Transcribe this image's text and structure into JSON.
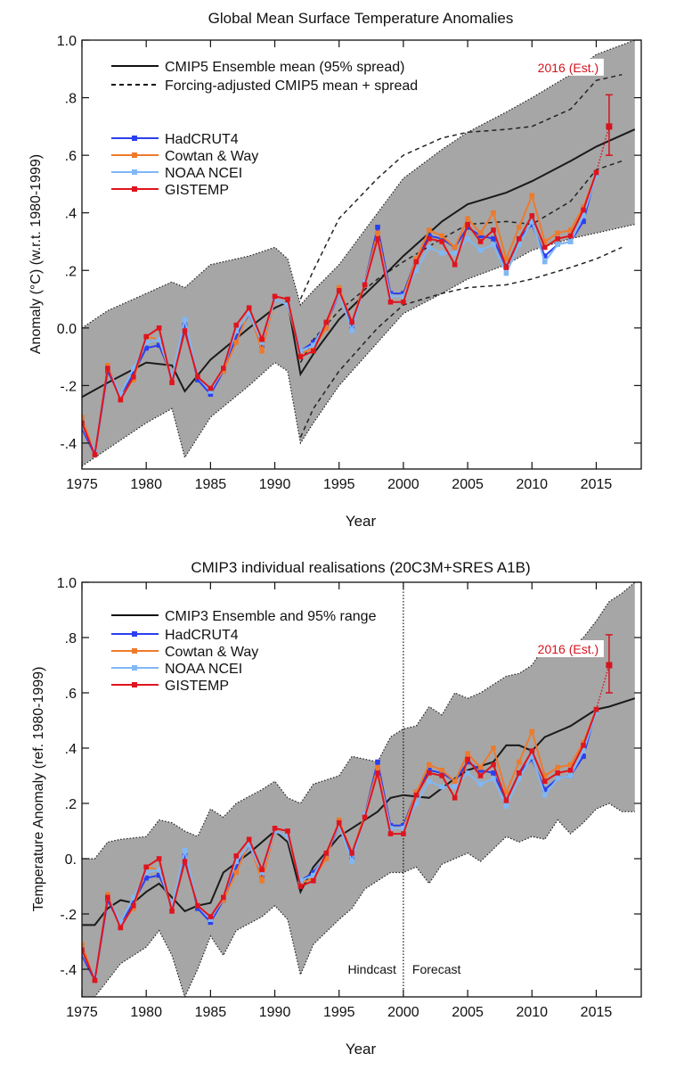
{
  "chart_data": [
    {
      "type": "line",
      "title": "Global Mean Surface Temperature Anomalies",
      "xlabel": "Year",
      "ylabel": "Anomaly (°C) (w.r.t. 1980-1999)",
      "xlim": [
        1975,
        2018.5
      ],
      "ylim": [
        -0.49,
        1.0
      ],
      "x_ticks": [
        1975,
        1980,
        1985,
        1990,
        1995,
        2000,
        2005,
        2010,
        2015
      ],
      "y_ticks": [
        {
          "v": 1.0,
          "label": "1.0"
        },
        {
          "v": 0.8,
          "label": ".8"
        },
        {
          "v": 0.6,
          "label": ".6"
        },
        {
          "v": 0.4,
          "label": ".4"
        },
        {
          "v": 0.2,
          "label": ".2"
        },
        {
          "v": 0.0,
          "label": "0.0"
        },
        {
          "v": -0.2,
          "label": "-.2"
        },
        {
          "v": -0.4,
          "label": "-.4"
        }
      ],
      "grid": false,
      "legend": {
        "placement": "top-left",
        "model_entries": [
          "CMIP5 Ensemble mean (95% spread)",
          "Forcing-adjusted CMIP5 mean + spread"
        ],
        "obs_entries": [
          "HadCRUT4",
          "Cowtan & Way",
          "NOAA NCEI",
          "GISTEMP"
        ]
      },
      "band_color": "#a6a6a6",
      "model_mean": {
        "x": [
          1975,
          1977,
          1980,
          1982,
          1983,
          1985,
          1988,
          1990,
          1991,
          1992,
          1993,
          1995,
          1998,
          2000,
          2003,
          2005,
          2008,
          2010,
          2013,
          2015,
          2018
        ],
        "y": [
          -0.24,
          -0.19,
          -0.12,
          -0.13,
          -0.22,
          -0.11,
          0.0,
          0.07,
          0.09,
          -0.16,
          -0.09,
          0.03,
          0.16,
          0.25,
          0.37,
          0.43,
          0.47,
          0.51,
          0.58,
          0.63,
          0.69
        ]
      },
      "model_spread": {
        "x": [
          1975,
          1977,
          1980,
          1982,
          1983,
          1985,
          1988,
          1990,
          1991,
          1992,
          1993,
          1995,
          1998,
          2000,
          2003,
          2005,
          2008,
          2010,
          2013,
          2015,
          2018
        ],
        "upper": [
          0.0,
          0.06,
          0.12,
          0.16,
          0.14,
          0.22,
          0.25,
          0.28,
          0.24,
          0.08,
          0.13,
          0.22,
          0.4,
          0.52,
          0.62,
          0.68,
          0.75,
          0.8,
          0.88,
          0.95,
          1.0
        ],
        "lower": [
          -0.48,
          -0.42,
          -0.33,
          -0.28,
          -0.45,
          -0.31,
          -0.2,
          -0.12,
          -0.15,
          -0.4,
          -0.33,
          -0.2,
          -0.05,
          0.05,
          0.12,
          0.17,
          0.22,
          0.27,
          0.31,
          0.33,
          0.36
        ]
      },
      "adjusted": {
        "x": [
          1992,
          1993,
          1995,
          1998,
          2000,
          2003,
          2005,
          2008,
          2010,
          2013,
          2015,
          2017
        ],
        "upper": [
          0.1,
          0.2,
          0.38,
          0.52,
          0.6,
          0.66,
          0.68,
          0.69,
          0.7,
          0.76,
          0.86,
          0.88
        ],
        "mean": [
          -0.12,
          -0.04,
          0.06,
          0.17,
          0.23,
          0.31,
          0.36,
          0.37,
          0.36,
          0.44,
          0.55,
          0.58
        ],
        "lower": [
          -0.38,
          -0.28,
          -0.15,
          0.0,
          0.08,
          0.12,
          0.14,
          0.15,
          0.17,
          0.21,
          0.24,
          0.28
        ]
      },
      "x": [
        1975,
        1976,
        1977,
        1978,
        1979,
        1980,
        1981,
        1982,
        1983,
        1984,
        1985,
        1986,
        1987,
        1988,
        1989,
        1990,
        1991,
        1992,
        1993,
        1994,
        1995,
        1996,
        1997,
        1998,
        1999,
        2000,
        2001,
        2002,
        2003,
        2004,
        2005,
        2006,
        2007,
        2008,
        2009,
        2010,
        2011,
        2012,
        2013,
        2014,
        2015
      ],
      "series": [
        {
          "name": "HadCRUT4",
          "color": "#2b3ff0",
          "values": [
            -0.35,
            -0.44,
            -0.15,
            -0.24,
            -0.16,
            -0.07,
            -0.06,
            -0.17,
            0.01,
            -0.18,
            -0.23,
            -0.15,
            -0.03,
            0.05,
            -0.06,
            0.1,
            0.08,
            -0.08,
            -0.05,
            0.01,
            0.12,
            0.0,
            0.16,
            0.35,
            0.12,
            0.12,
            0.24,
            0.32,
            0.31,
            0.28,
            0.35,
            0.32,
            0.31,
            0.21,
            0.31,
            0.36,
            0.25,
            0.29,
            0.3,
            0.37,
            0.54
          ]
        },
        {
          "name": "Cowtan & Way",
          "color": "#ee7a2b",
          "values": [
            -0.31,
            -0.44,
            -0.13,
            -0.24,
            -0.18,
            -0.03,
            -0.04,
            -0.18,
            -0.01,
            -0.17,
            -0.21,
            -0.15,
            -0.05,
            0.06,
            -0.08,
            0.1,
            0.08,
            -0.09,
            -0.07,
            0.0,
            0.14,
            0.02,
            0.16,
            0.33,
            0.11,
            0.11,
            0.24,
            0.34,
            0.32,
            0.28,
            0.38,
            0.33,
            0.4,
            0.24,
            0.35,
            0.46,
            0.3,
            0.33,
            0.34,
            0.42,
            0.54
          ]
        },
        {
          "name": "NOAA NCEI",
          "color": "#7fb8f5",
          "values": [
            -0.34,
            -0.43,
            -0.14,
            -0.23,
            -0.14,
            -0.05,
            -0.04,
            -0.17,
            0.03,
            -0.17,
            -0.22,
            -0.14,
            -0.01,
            0.05,
            -0.05,
            0.1,
            0.08,
            -0.08,
            -0.06,
            0.02,
            0.12,
            -0.01,
            0.16,
            0.31,
            0.11,
            0.11,
            0.2,
            0.28,
            0.26,
            0.26,
            0.31,
            0.27,
            0.29,
            0.19,
            0.29,
            0.37,
            0.23,
            0.29,
            0.3,
            0.39,
            0.53
          ]
        },
        {
          "name": "GISTEMP",
          "color": "#e0141e",
          "values": [
            -0.33,
            -0.44,
            -0.14,
            -0.25,
            -0.17,
            -0.03,
            0.0,
            -0.19,
            -0.01,
            -0.17,
            -0.21,
            -0.14,
            0.01,
            0.07,
            -0.04,
            0.11,
            0.1,
            -0.1,
            -0.08,
            0.02,
            0.13,
            0.02,
            0.15,
            0.31,
            0.09,
            0.09,
            0.23,
            0.31,
            0.3,
            0.22,
            0.36,
            0.3,
            0.34,
            0.21,
            0.31,
            0.39,
            0.28,
            0.31,
            0.32,
            0.41,
            0.54
          ]
        }
      ],
      "estimate": {
        "label": "2016 (Est.)",
        "x": 2016,
        "y": 0.7,
        "low": 0.6,
        "high": 0.81,
        "color": "#d4141e"
      }
    },
    {
      "type": "line",
      "title": "CMIP3 individual realisations (20C3M+SRES A1B)",
      "xlabel": "Year",
      "ylabel": "Temperature Anomaly (ref. 1980-1999)",
      "xlim": [
        1975,
        2018.5
      ],
      "ylim": [
        -0.5,
        1.0
      ],
      "x_ticks": [
        1975,
        1980,
        1985,
        1990,
        1995,
        2000,
        2005,
        2010,
        2015
      ],
      "y_ticks": [
        {
          "v": 1.0,
          "label": "1.0"
        },
        {
          "v": 0.8,
          "label": ".8"
        },
        {
          "v": 0.6,
          "label": ".6"
        },
        {
          "v": 0.4,
          "label": ".4"
        },
        {
          "v": 0.2,
          "label": ".2"
        },
        {
          "v": 0.0,
          "label": "0."
        },
        {
          "v": -0.2,
          "label": "-.2"
        },
        {
          "v": -0.4,
          "label": "-.4"
        }
      ],
      "grid": false,
      "legend": {
        "placement": "top-left",
        "model_entries": [
          "CMIP3 Ensemble and 95% range"
        ],
        "obs_entries": [
          "HadCRUT4",
          "Cowtan & Way",
          "NOAA NCEI",
          "GISTEMP"
        ]
      },
      "annotations": {
        "divider_year": 2000,
        "left_label": "Hindcast",
        "right_label": "Forecast"
      },
      "band_color": "#a6a6a6",
      "model_mean": {
        "x": [
          1975,
          1976,
          1977,
          1978,
          1979,
          1980,
          1981,
          1982,
          1983,
          1984,
          1985,
          1986,
          1988,
          1990,
          1991,
          1992,
          1993,
          1995,
          1998,
          1999,
          2000,
          2002,
          2004,
          2005,
          2007,
          2008,
          2009,
          2010,
          2011,
          2013,
          2014,
          2015,
          2016,
          2018
        ],
        "y": [
          -0.24,
          -0.24,
          -0.18,
          -0.15,
          -0.16,
          -0.12,
          -0.09,
          -0.14,
          -0.19,
          -0.17,
          -0.16,
          -0.05,
          0.02,
          0.1,
          0.06,
          -0.12,
          -0.03,
          0.08,
          0.17,
          0.22,
          0.23,
          0.22,
          0.29,
          0.32,
          0.35,
          0.41,
          0.41,
          0.39,
          0.44,
          0.48,
          0.51,
          0.54,
          0.55,
          0.58
        ]
      },
      "model_spread": {
        "x": [
          1975,
          1976,
          1977,
          1978,
          1980,
          1981,
          1982,
          1983,
          1984,
          1985,
          1986,
          1987,
          1989,
          1990,
          1991,
          1992,
          1993,
          1995,
          1996,
          1997,
          1998,
          1999,
          2000,
          2001,
          2002,
          2003,
          2004,
          2005,
          2006,
          2008,
          2009,
          2010,
          2011,
          2012,
          2013,
          2014,
          2015,
          2016,
          2017,
          2018
        ],
        "upper": [
          0.0,
          0.0,
          0.06,
          0.07,
          0.08,
          0.14,
          0.13,
          0.1,
          0.08,
          0.18,
          0.15,
          0.2,
          0.25,
          0.28,
          0.22,
          0.2,
          0.27,
          0.3,
          0.37,
          0.36,
          0.35,
          0.44,
          0.47,
          0.48,
          0.55,
          0.52,
          0.6,
          0.58,
          0.6,
          0.66,
          0.67,
          0.7,
          0.77,
          0.78,
          0.76,
          0.8,
          0.86,
          0.93,
          0.96,
          1.0
        ],
        "lower": [
          -0.5,
          -0.5,
          -0.44,
          -0.38,
          -0.32,
          -0.26,
          -0.35,
          -0.5,
          -0.4,
          -0.28,
          -0.35,
          -0.26,
          -0.21,
          -0.17,
          -0.22,
          -0.42,
          -0.31,
          -0.22,
          -0.18,
          -0.11,
          -0.08,
          -0.05,
          -0.05,
          -0.03,
          -0.09,
          -0.02,
          0.0,
          0.02,
          -0.01,
          0.08,
          0.06,
          0.08,
          0.07,
          0.14,
          0.09,
          0.13,
          0.18,
          0.2,
          0.17,
          0.17
        ]
      },
      "x": [
        1975,
        1976,
        1977,
        1978,
        1979,
        1980,
        1981,
        1982,
        1983,
        1984,
        1985,
        1986,
        1987,
        1988,
        1989,
        1990,
        1991,
        1992,
        1993,
        1994,
        1995,
        1996,
        1997,
        1998,
        1999,
        2000,
        2001,
        2002,
        2003,
        2004,
        2005,
        2006,
        2007,
        2008,
        2009,
        2010,
        2011,
        2012,
        2013,
        2014,
        2015
      ],
      "series": [
        {
          "name": "HadCRUT4",
          "color": "#2b3ff0",
          "values": [
            -0.35,
            -0.44,
            -0.15,
            -0.24,
            -0.16,
            -0.07,
            -0.06,
            -0.17,
            0.01,
            -0.18,
            -0.23,
            -0.15,
            -0.03,
            0.05,
            -0.06,
            0.1,
            0.08,
            -0.08,
            -0.05,
            0.01,
            0.12,
            0.0,
            0.16,
            0.35,
            0.12,
            0.12,
            0.24,
            0.32,
            0.31,
            0.28,
            0.35,
            0.32,
            0.31,
            0.21,
            0.31,
            0.36,
            0.25,
            0.29,
            0.3,
            0.37,
            0.54
          ]
        },
        {
          "name": "Cowtan & Way",
          "color": "#ee7a2b",
          "values": [
            -0.31,
            -0.44,
            -0.13,
            -0.24,
            -0.18,
            -0.03,
            -0.04,
            -0.18,
            -0.01,
            -0.17,
            -0.21,
            -0.15,
            -0.05,
            0.06,
            -0.08,
            0.1,
            0.08,
            -0.09,
            -0.07,
            0.0,
            0.14,
            0.02,
            0.16,
            0.33,
            0.11,
            0.11,
            0.24,
            0.34,
            0.32,
            0.28,
            0.38,
            0.33,
            0.4,
            0.24,
            0.35,
            0.46,
            0.3,
            0.33,
            0.34,
            0.42,
            0.54
          ]
        },
        {
          "name": "NOAA NCEI",
          "color": "#7fb8f5",
          "values": [
            -0.34,
            -0.43,
            -0.14,
            -0.23,
            -0.14,
            -0.05,
            -0.04,
            -0.17,
            0.03,
            -0.17,
            -0.22,
            -0.14,
            -0.01,
            0.05,
            -0.05,
            0.1,
            0.08,
            -0.08,
            -0.06,
            0.02,
            0.12,
            -0.01,
            0.16,
            0.31,
            0.11,
            0.11,
            0.2,
            0.28,
            0.26,
            0.26,
            0.31,
            0.27,
            0.29,
            0.19,
            0.29,
            0.37,
            0.23,
            0.29,
            0.3,
            0.39,
            0.53
          ]
        },
        {
          "name": "GISTEMP",
          "color": "#e0141e",
          "values": [
            -0.33,
            -0.44,
            -0.14,
            -0.25,
            -0.17,
            -0.03,
            0.0,
            -0.19,
            -0.01,
            -0.17,
            -0.21,
            -0.14,
            0.01,
            0.07,
            -0.04,
            0.11,
            0.1,
            -0.1,
            -0.08,
            0.02,
            0.13,
            0.02,
            0.15,
            0.31,
            0.09,
            0.09,
            0.23,
            0.31,
            0.3,
            0.22,
            0.36,
            0.3,
            0.34,
            0.21,
            0.31,
            0.39,
            0.28,
            0.31,
            0.32,
            0.41,
            0.54
          ]
        }
      ],
      "estimate": {
        "label": "2016 (Est.)",
        "x": 2016,
        "y": 0.7,
        "low": 0.6,
        "high": 0.81,
        "color": "#d4141e"
      }
    }
  ]
}
